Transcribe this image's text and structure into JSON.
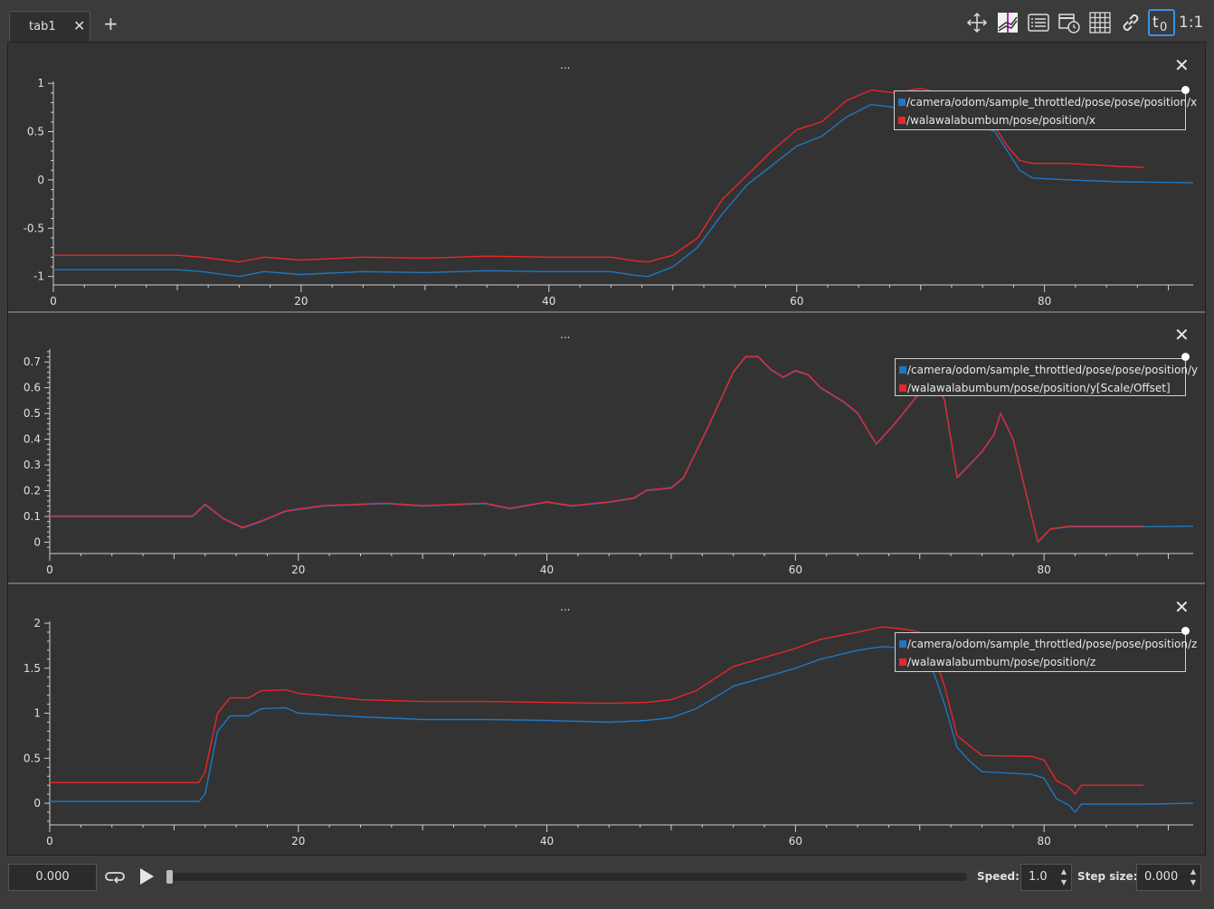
{
  "tabs": [
    {
      "label": "tab1",
      "close_glyph": "✕"
    }
  ],
  "add_tab_glyph": "+",
  "toolbar": {
    "buttons": [
      "move-icon",
      "legend-position-icon",
      "list-icon",
      "time-calendar-icon",
      "grid-icon",
      "link-icon",
      "time-offset-icon"
    ],
    "ratio_label": "1:1"
  },
  "panel_menu_label": "...",
  "panel_close_glyph": "✕",
  "colors": {
    "series_blue": "#1f77c4",
    "series_red": "#e8262b",
    "background": "#333333"
  },
  "plots": [
    {
      "legend": [
        "/camera/odom/sample_throttled/pose/pose/position/x",
        "/walawalabumbum/pose/position/x"
      ],
      "yticks": [
        "1",
        "0.5",
        "0",
        "-0.5",
        "-1"
      ],
      "xticks": [
        "0",
        "20",
        "40",
        "60",
        "80"
      ]
    },
    {
      "legend": [
        "/camera/odom/sample_throttled/pose/pose/position/y",
        "/walawalabumbum/pose/position/y[Scale/Offset]"
      ],
      "yticks": [
        "0.7",
        "0.6",
        "0.5",
        "0.4",
        "0.3",
        "0.2",
        "0.1",
        "0"
      ],
      "xticks": [
        "0",
        "20",
        "40",
        "60",
        "80"
      ]
    },
    {
      "legend": [
        "/camera/odom/sample_throttled/pose/pose/position/z",
        "/walawalabumbum/pose/position/z"
      ],
      "yticks": [
        "2",
        "1.5",
        "1",
        "0.5",
        "0"
      ],
      "xticks": [
        "0",
        "20",
        "40",
        "60",
        "80"
      ]
    }
  ],
  "chart_data": [
    {
      "type": "line",
      "ylim": [
        -1.05,
        1.02
      ],
      "xlim": [
        0,
        92
      ],
      "series": [
        {
          "name": "/camera/odom/sample_throttled/pose/pose/position/x",
          "color": "#1f77c4",
          "points": [
            [
              0,
              -0.93
            ],
            [
              10,
              -0.93
            ],
            [
              12,
              -0.95
            ],
            [
              15,
              -1.0
            ],
            [
              17,
              -0.95
            ],
            [
              20,
              -0.98
            ],
            [
              25,
              -0.95
            ],
            [
              30,
              -0.96
            ],
            [
              35,
              -0.94
            ],
            [
              40,
              -0.95
            ],
            [
              45,
              -0.95
            ],
            [
              47,
              -0.99
            ],
            [
              48,
              -1.0
            ],
            [
              50,
              -0.9
            ],
            [
              52,
              -0.7
            ],
            [
              54,
              -0.35
            ],
            [
              56,
              -0.05
            ],
            [
              58,
              0.15
            ],
            [
              60,
              0.35
            ],
            [
              62,
              0.45
            ],
            [
              64,
              0.65
            ],
            [
              66,
              0.78
            ],
            [
              68,
              0.75
            ],
            [
              70,
              0.72
            ],
            [
              72,
              0.65
            ],
            [
              74,
              0.6
            ],
            [
              76,
              0.5
            ],
            [
              77,
              0.3
            ],
            [
              78,
              0.1
            ],
            [
              79,
              0.02
            ],
            [
              82,
              0.0
            ],
            [
              86,
              -0.02
            ],
            [
              92,
              -0.03
            ]
          ]
        },
        {
          "name": "/walawalabumbum/pose/position/x",
          "color": "#e8262b",
          "points": [
            [
              0,
              -0.78
            ],
            [
              10,
              -0.78
            ],
            [
              12,
              -0.8
            ],
            [
              15,
              -0.85
            ],
            [
              17,
              -0.8
            ],
            [
              20,
              -0.83
            ],
            [
              25,
              -0.8
            ],
            [
              30,
              -0.81
            ],
            [
              35,
              -0.79
            ],
            [
              40,
              -0.8
            ],
            [
              45,
              -0.8
            ],
            [
              47,
              -0.84
            ],
            [
              48,
              -0.85
            ],
            [
              50,
              -0.78
            ],
            [
              52,
              -0.6
            ],
            [
              54,
              -0.2
            ],
            [
              56,
              0.05
            ],
            [
              58,
              0.3
            ],
            [
              60,
              0.52
            ],
            [
              62,
              0.6
            ],
            [
              64,
              0.82
            ],
            [
              66,
              0.93
            ],
            [
              68,
              0.9
            ],
            [
              70,
              0.95
            ],
            [
              72,
              0.88
            ],
            [
              74,
              0.8
            ],
            [
              76,
              0.55
            ],
            [
              77,
              0.35
            ],
            [
              78,
              0.2
            ],
            [
              79,
              0.17
            ],
            [
              82,
              0.17
            ],
            [
              86,
              0.14
            ],
            [
              88,
              0.13
            ]
          ]
        }
      ]
    },
    {
      "type": "line",
      "ylim": [
        -0.03,
        0.75
      ],
      "xlim": [
        0,
        92
      ],
      "series": [
        {
          "name": "/camera/odom/sample_throttled/pose/pose/position/y",
          "color": "#1f77c4",
          "points": [
            [
              0,
              0.1
            ],
            [
              11.5,
              0.1
            ],
            [
              12.5,
              0.145
            ],
            [
              14,
              0.09
            ],
            [
              15.5,
              0.055
            ],
            [
              17,
              0.08
            ],
            [
              19,
              0.12
            ],
            [
              22,
              0.14
            ],
            [
              27,
              0.15
            ],
            [
              30,
              0.14
            ],
            [
              35,
              0.15
            ],
            [
              37,
              0.13
            ],
            [
              40,
              0.155
            ],
            [
              42,
              0.14
            ],
            [
              45,
              0.155
            ],
            [
              47,
              0.17
            ],
            [
              48,
              0.2
            ],
            [
              50,
              0.21
            ],
            [
              51,
              0.25
            ],
            [
              53,
              0.45
            ],
            [
              55,
              0.66
            ],
            [
              56,
              0.72
            ],
            [
              57,
              0.72
            ],
            [
              58,
              0.67
            ],
            [
              59,
              0.64
            ],
            [
              60,
              0.665
            ],
            [
              61,
              0.65
            ],
            [
              62,
              0.6
            ],
            [
              64,
              0.54
            ],
            [
              65,
              0.5
            ],
            [
              66.5,
              0.38
            ],
            [
              68,
              0.46
            ],
            [
              70,
              0.58
            ],
            [
              71,
              0.65
            ],
            [
              72,
              0.55
            ],
            [
              73,
              0.25
            ],
            [
              74,
              0.3
            ],
            [
              75,
              0.35
            ],
            [
              76,
              0.42
            ],
            [
              76.5,
              0.5
            ],
            [
              77.5,
              0.4
            ],
            [
              78.5,
              0.2
            ],
            [
              79.5,
              0.0
            ],
            [
              80.5,
              0.05
            ],
            [
              82,
              0.06
            ],
            [
              88,
              0.06
            ],
            [
              92,
              0.062
            ]
          ]
        },
        {
          "name": "/walawalabumbum/pose/position/y[Scale/Offset]",
          "color": "#e8262b",
          "points": [
            [
              0,
              0.102
            ],
            [
              11.5,
              0.102
            ],
            [
              12.5,
              0.148
            ],
            [
              14,
              0.092
            ],
            [
              15.5,
              0.058
            ],
            [
              17,
              0.082
            ],
            [
              19,
              0.122
            ],
            [
              22,
              0.142
            ],
            [
              27,
              0.152
            ],
            [
              30,
              0.142
            ],
            [
              35,
              0.152
            ],
            [
              37,
              0.132
            ],
            [
              40,
              0.157
            ],
            [
              42,
              0.142
            ],
            [
              45,
              0.157
            ],
            [
              47,
              0.172
            ],
            [
              48,
              0.202
            ],
            [
              50,
              0.212
            ],
            [
              51,
              0.252
            ],
            [
              53,
              0.452
            ],
            [
              55,
              0.662
            ],
            [
              56,
              0.722
            ],
            [
              57,
              0.722
            ],
            [
              58,
              0.672
            ],
            [
              59,
              0.642
            ],
            [
              60,
              0.667
            ],
            [
              61,
              0.652
            ],
            [
              62,
              0.602
            ],
            [
              64,
              0.542
            ],
            [
              65,
              0.502
            ],
            [
              66.5,
              0.382
            ],
            [
              68,
              0.462
            ],
            [
              70,
              0.582
            ],
            [
              71,
              0.652
            ],
            [
              72,
              0.552
            ],
            [
              73,
              0.252
            ],
            [
              74,
              0.302
            ],
            [
              75,
              0.352
            ],
            [
              76,
              0.422
            ],
            [
              76.5,
              0.502
            ],
            [
              77.5,
              0.402
            ],
            [
              78.5,
              0.202
            ],
            [
              79.5,
              0.002
            ],
            [
              80.5,
              0.052
            ],
            [
              82,
              0.062
            ],
            [
              88,
              0.062
            ]
          ]
        }
      ]
    },
    {
      "type": "line",
      "ylim": [
        -0.2,
        2.02
      ],
      "xlim": [
        0,
        92
      ],
      "series": [
        {
          "name": "/camera/odom/sample_throttled/pose/pose/position/z",
          "color": "#1f77c4",
          "points": [
            [
              0,
              0.02
            ],
            [
              12,
              0.02
            ],
            [
              12.5,
              0.1
            ],
            [
              13.5,
              0.8
            ],
            [
              14.5,
              0.97
            ],
            [
              16,
              0.97
            ],
            [
              17,
              1.05
            ],
            [
              19,
              1.06
            ],
            [
              20,
              1.0
            ],
            [
              25,
              0.96
            ],
            [
              30,
              0.93
            ],
            [
              35,
              0.93
            ],
            [
              40,
              0.92
            ],
            [
              45,
              0.9
            ],
            [
              48,
              0.92
            ],
            [
              50,
              0.95
            ],
            [
              52,
              1.05
            ],
            [
              55,
              1.3
            ],
            [
              60,
              1.5
            ],
            [
              62,
              1.6
            ],
            [
              65,
              1.7
            ],
            [
              67,
              1.74
            ],
            [
              69,
              1.72
            ],
            [
              70,
              1.7
            ],
            [
              71,
              1.5
            ],
            [
              72,
              1.1
            ],
            [
              73,
              0.62
            ],
            [
              74,
              0.47
            ],
            [
              75,
              0.35
            ],
            [
              79,
              0.32
            ],
            [
              80,
              0.28
            ],
            [
              81,
              0.05
            ],
            [
              82,
              -0.02
            ],
            [
              82.5,
              -0.1
            ],
            [
              83,
              -0.01
            ],
            [
              88,
              -0.01
            ],
            [
              92,
              0.0
            ]
          ]
        },
        {
          "name": "/walawalabumbum/pose/position/z",
          "color": "#e8262b",
          "points": [
            [
              0,
              0.23
            ],
            [
              12,
              0.23
            ],
            [
              12.5,
              0.35
            ],
            [
              13.5,
              1.0
            ],
            [
              14.5,
              1.17
            ],
            [
              16,
              1.17
            ],
            [
              17,
              1.25
            ],
            [
              19,
              1.26
            ],
            [
              20,
              1.22
            ],
            [
              25,
              1.15
            ],
            [
              30,
              1.13
            ],
            [
              35,
              1.13
            ],
            [
              40,
              1.12
            ],
            [
              45,
              1.11
            ],
            [
              48,
              1.12
            ],
            [
              50,
              1.15
            ],
            [
              52,
              1.25
            ],
            [
              55,
              1.52
            ],
            [
              60,
              1.72
            ],
            [
              62,
              1.82
            ],
            [
              65,
              1.9
            ],
            [
              67,
              1.96
            ],
            [
              69,
              1.93
            ],
            [
              70,
              1.9
            ],
            [
              71,
              1.7
            ],
            [
              72,
              1.3
            ],
            [
              73,
              0.75
            ],
            [
              74,
              0.64
            ],
            [
              75,
              0.53
            ],
            [
              79,
              0.52
            ],
            [
              80,
              0.48
            ],
            [
              81,
              0.25
            ],
            [
              82,
              0.18
            ],
            [
              82.5,
              0.1
            ],
            [
              83,
              0.2
            ],
            [
              88,
              0.2
            ]
          ]
        }
      ]
    }
  ],
  "bottom": {
    "time_value": "0.000",
    "speed_label": "Speed:",
    "speed_value": "1.0",
    "step_label": "Step size:",
    "step_value": "0.000",
    "spin_up": "▲",
    "spin_down": "▼"
  }
}
